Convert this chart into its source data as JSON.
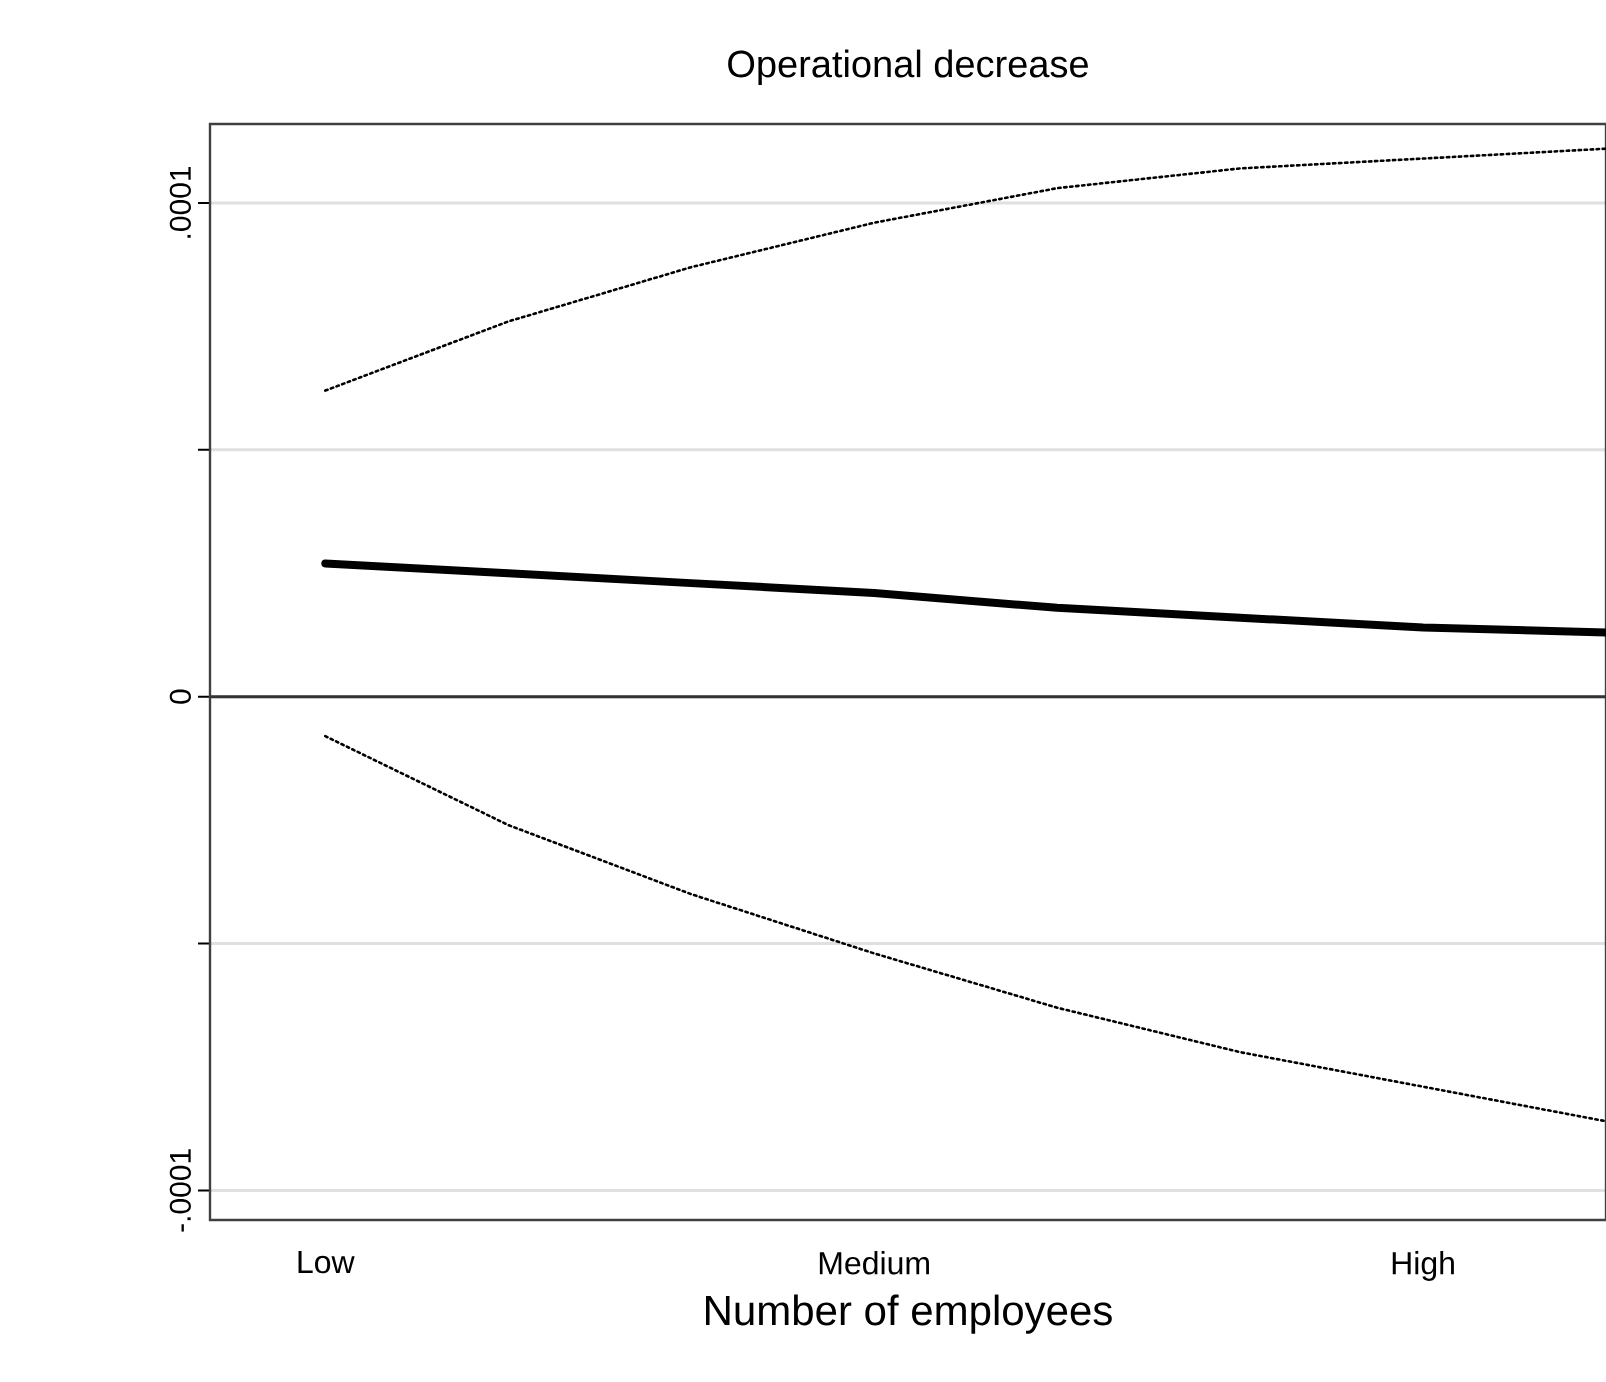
{
  "chart_data": {
    "type": "line",
    "title": "Operational decrease",
    "xlabel": "Number of employees",
    "categories": [
      "Low",
      null,
      null,
      "Medium",
      null,
      null,
      "High",
      null
    ],
    "ylim": [
      -0.000106,
      0.000116
    ],
    "yticks": [
      {
        "value": -0.0001,
        "label": "-.0001"
      },
      {
        "value": -5e-05,
        "label": null
      },
      {
        "value": 0,
        "label": "0"
      },
      {
        "value": 5e-05,
        "label": null
      },
      {
        "value": 0.0001,
        "label": ".0001"
      }
    ],
    "grid": "y",
    "ref_lines": [
      {
        "axis": "y",
        "value": 0,
        "color": "#333333"
      }
    ],
    "series": [
      {
        "color": "#000000",
        "line_style": "solid",
        "values": [
          2.7e-05,
          2.5e-05,
          2.3e-05,
          2.1e-05,
          1.8e-05,
          1.6e-05,
          1.4e-05,
          1.3e-05
        ]
      },
      {
        "color": "#000000",
        "line_style": "dotted",
        "values": [
          6.2e-05,
          7.6e-05,
          8.7e-05,
          9.6e-05,
          0.000103,
          0.000107,
          0.000109,
          0.000111
        ]
      },
      {
        "color": "#000000",
        "line_style": "dotted",
        "values": [
          -8e-06,
          -2.6e-05,
          -4e-05,
          -5.2e-05,
          -6.3e-05,
          -7.2e-05,
          -7.9e-05,
          -8.6e-05
        ]
      }
    ]
  }
}
